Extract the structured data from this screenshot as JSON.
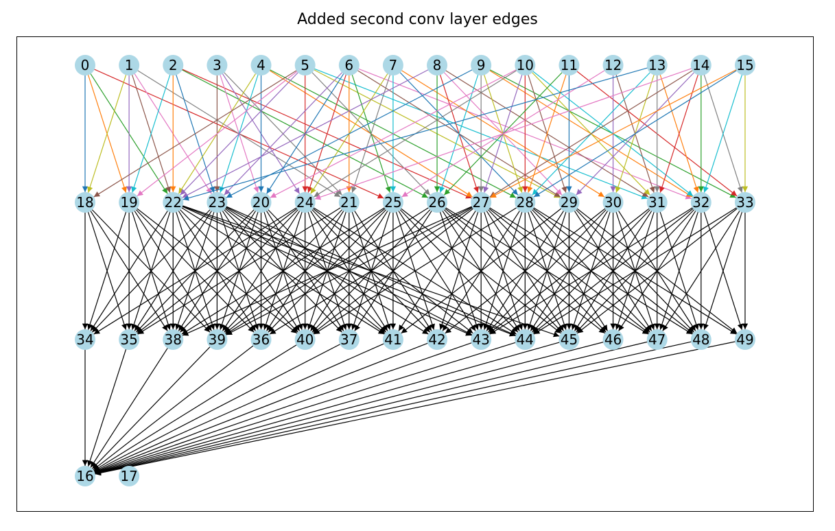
{
  "title": "Added second conv layer edges",
  "node_color": "#add8e6",
  "layers": [
    [
      "0",
      "1",
      "2",
      "3",
      "4",
      "5",
      "6",
      "7",
      "8",
      "9",
      "10",
      "11",
      "12",
      "13",
      "14",
      "15"
    ],
    [
      "18",
      "19",
      "22",
      "23",
      "20",
      "24",
      "21",
      "25",
      "26",
      "27",
      "28",
      "29",
      "30",
      "31",
      "32",
      "33"
    ],
    [
      "34",
      "35",
      "38",
      "39",
      "36",
      "40",
      "37",
      "41",
      "42",
      "43",
      "44",
      "45",
      "46",
      "47",
      "48",
      "49"
    ],
    [
      "16",
      "17"
    ]
  ],
  "edge_colors": [
    "#1f77b4",
    "#ff7f0e",
    "#2ca02c",
    "#d62728",
    "#9467bd",
    "#8c564b",
    "#e377c2",
    "#7f7f7f",
    "#bcbd22",
    "#17becf"
  ],
  "edges_input_to_conv1": [
    [
      "0",
      "18"
    ],
    [
      "0",
      "19"
    ],
    [
      "0",
      "22"
    ],
    [
      "0",
      "25"
    ],
    [
      "1",
      "19"
    ],
    [
      "1",
      "22"
    ],
    [
      "1",
      "23"
    ],
    [
      "1",
      "21"
    ],
    [
      "1",
      "18"
    ],
    [
      "2",
      "19"
    ],
    [
      "2",
      "23"
    ],
    [
      "2",
      "22"
    ],
    [
      "2",
      "26"
    ],
    [
      "2",
      "27"
    ],
    [
      "3",
      "24"
    ],
    [
      "3",
      "23"
    ],
    [
      "3",
      "20"
    ],
    [
      "3",
      "21"
    ],
    [
      "4",
      "22"
    ],
    [
      "4",
      "23"
    ],
    [
      "4",
      "20"
    ],
    [
      "4",
      "27"
    ],
    [
      "4",
      "28"
    ],
    [
      "5",
      "24"
    ],
    [
      "5",
      "22"
    ],
    [
      "5",
      "18"
    ],
    [
      "5",
      "19"
    ],
    [
      "5",
      "26"
    ],
    [
      "5",
      "29"
    ],
    [
      "5",
      "31"
    ],
    [
      "6",
      "20"
    ],
    [
      "6",
      "21"
    ],
    [
      "6",
      "25"
    ],
    [
      "6",
      "24"
    ],
    [
      "6",
      "23"
    ],
    [
      "6",
      "29"
    ],
    [
      "6",
      "32"
    ],
    [
      "7",
      "21"
    ],
    [
      "7",
      "24"
    ],
    [
      "7",
      "25"
    ],
    [
      "7",
      "28"
    ],
    [
      "7",
      "30"
    ],
    [
      "8",
      "26"
    ],
    [
      "8",
      "27"
    ],
    [
      "8",
      "22"
    ],
    [
      "8",
      "31"
    ],
    [
      "8",
      "29"
    ],
    [
      "9",
      "27"
    ],
    [
      "9",
      "28"
    ],
    [
      "9",
      "26"
    ],
    [
      "9",
      "23"
    ],
    [
      "9",
      "32"
    ],
    [
      "9",
      "33"
    ],
    [
      "10",
      "28"
    ],
    [
      "10",
      "27"
    ],
    [
      "10",
      "29"
    ],
    [
      "10",
      "20"
    ],
    [
      "10",
      "24"
    ],
    [
      "10",
      "31"
    ],
    [
      "10",
      "32"
    ],
    [
      "11",
      "29"
    ],
    [
      "11",
      "28"
    ],
    [
      "11",
      "26"
    ],
    [
      "11",
      "33"
    ],
    [
      "12",
      "30"
    ],
    [
      "12",
      "31"
    ],
    [
      "12",
      "25"
    ],
    [
      "13",
      "31"
    ],
    [
      "13",
      "30"
    ],
    [
      "13",
      "28"
    ],
    [
      "13",
      "22"
    ],
    [
      "13",
      "32"
    ],
    [
      "14",
      "32"
    ],
    [
      "14",
      "31"
    ],
    [
      "14",
      "29"
    ],
    [
      "14",
      "27"
    ],
    [
      "14",
      "24"
    ],
    [
      "14",
      "33"
    ],
    [
      "15",
      "33"
    ],
    [
      "15",
      "32"
    ],
    [
      "15",
      "28"
    ],
    [
      "15",
      "27"
    ]
  ],
  "edges_conv1_to_conv2": [
    [
      "18",
      "34"
    ],
    [
      "18",
      "35"
    ],
    [
      "18",
      "38"
    ],
    [
      "18",
      "39"
    ],
    [
      "19",
      "34"
    ],
    [
      "19",
      "35"
    ],
    [
      "19",
      "38"
    ],
    [
      "19",
      "39"
    ],
    [
      "19",
      "36"
    ],
    [
      "19",
      "40"
    ],
    [
      "22",
      "34"
    ],
    [
      "22",
      "35"
    ],
    [
      "22",
      "38"
    ],
    [
      "22",
      "39"
    ],
    [
      "22",
      "36"
    ],
    [
      "22",
      "40"
    ],
    [
      "22",
      "41"
    ],
    [
      "22",
      "43"
    ],
    [
      "22",
      "44"
    ],
    [
      "22",
      "45"
    ],
    [
      "23",
      "34"
    ],
    [
      "23",
      "35"
    ],
    [
      "23",
      "38"
    ],
    [
      "23",
      "39"
    ],
    [
      "23",
      "36"
    ],
    [
      "23",
      "40"
    ],
    [
      "23",
      "37"
    ],
    [
      "23",
      "41"
    ],
    [
      "23",
      "42"
    ],
    [
      "23",
      "43"
    ],
    [
      "23",
      "44"
    ],
    [
      "20",
      "35"
    ],
    [
      "20",
      "38"
    ],
    [
      "20",
      "39"
    ],
    [
      "20",
      "36"
    ],
    [
      "20",
      "40"
    ],
    [
      "20",
      "37"
    ],
    [
      "20",
      "41"
    ],
    [
      "24",
      "34"
    ],
    [
      "24",
      "35"
    ],
    [
      "24",
      "38"
    ],
    [
      "24",
      "39"
    ],
    [
      "24",
      "36"
    ],
    [
      "24",
      "40"
    ],
    [
      "24",
      "37"
    ],
    [
      "24",
      "41"
    ],
    [
      "24",
      "42"
    ],
    [
      "24",
      "43"
    ],
    [
      "24",
      "44"
    ],
    [
      "21",
      "35"
    ],
    [
      "21",
      "39"
    ],
    [
      "21",
      "36"
    ],
    [
      "21",
      "40"
    ],
    [
      "21",
      "37"
    ],
    [
      "21",
      "41"
    ],
    [
      "21",
      "42"
    ],
    [
      "25",
      "38"
    ],
    [
      "25",
      "39"
    ],
    [
      "25",
      "36"
    ],
    [
      "25",
      "40"
    ],
    [
      "25",
      "37"
    ],
    [
      "25",
      "41"
    ],
    [
      "25",
      "42"
    ],
    [
      "25",
      "43"
    ],
    [
      "25",
      "44"
    ],
    [
      "25",
      "45"
    ],
    [
      "26",
      "39"
    ],
    [
      "26",
      "40"
    ],
    [
      "26",
      "37"
    ],
    [
      "26",
      "43"
    ],
    [
      "26",
      "44"
    ],
    [
      "26",
      "45"
    ],
    [
      "26",
      "46"
    ],
    [
      "26",
      "47"
    ],
    [
      "27",
      "38"
    ],
    [
      "27",
      "39"
    ],
    [
      "27",
      "36"
    ],
    [
      "27",
      "40"
    ],
    [
      "27",
      "41"
    ],
    [
      "27",
      "42"
    ],
    [
      "27",
      "43"
    ],
    [
      "27",
      "44"
    ],
    [
      "27",
      "45"
    ],
    [
      "27",
      "46"
    ],
    [
      "27",
      "47"
    ],
    [
      "27",
      "48"
    ],
    [
      "28",
      "40"
    ],
    [
      "28",
      "42"
    ],
    [
      "28",
      "43"
    ],
    [
      "28",
      "44"
    ],
    [
      "28",
      "45"
    ],
    [
      "28",
      "46"
    ],
    [
      "28",
      "47"
    ],
    [
      "28",
      "48"
    ],
    [
      "28",
      "49"
    ],
    [
      "29",
      "41"
    ],
    [
      "29",
      "43"
    ],
    [
      "29",
      "44"
    ],
    [
      "29",
      "45"
    ],
    [
      "29",
      "47"
    ],
    [
      "29",
      "48"
    ],
    [
      "29",
      "49"
    ],
    [
      "30",
      "42"
    ],
    [
      "30",
      "43"
    ],
    [
      "30",
      "44"
    ],
    [
      "30",
      "45"
    ],
    [
      "30",
      "46"
    ],
    [
      "30",
      "47"
    ],
    [
      "30",
      "48"
    ],
    [
      "31",
      "43"
    ],
    [
      "31",
      "44"
    ],
    [
      "31",
      "45"
    ],
    [
      "31",
      "46"
    ],
    [
      "31",
      "47"
    ],
    [
      "31",
      "48"
    ],
    [
      "32",
      "43"
    ],
    [
      "32",
      "44"
    ],
    [
      "32",
      "45"
    ],
    [
      "32",
      "46"
    ],
    [
      "32",
      "47"
    ],
    [
      "32",
      "48"
    ],
    [
      "32",
      "49"
    ],
    [
      "33",
      "44"
    ],
    [
      "33",
      "45"
    ],
    [
      "33",
      "47"
    ],
    [
      "33",
      "48"
    ],
    [
      "33",
      "49"
    ]
  ],
  "edges_conv2_to_output": [
    [
      "34",
      "16"
    ],
    [
      "35",
      "16"
    ],
    [
      "38",
      "16"
    ],
    [
      "39",
      "16"
    ],
    [
      "36",
      "16"
    ],
    [
      "40",
      "16"
    ],
    [
      "37",
      "16"
    ],
    [
      "41",
      "16"
    ],
    [
      "42",
      "16"
    ],
    [
      "43",
      "16"
    ],
    [
      "44",
      "16"
    ],
    [
      "45",
      "16"
    ],
    [
      "46",
      "16"
    ],
    [
      "47",
      "16"
    ],
    [
      "48",
      "16"
    ],
    [
      "49",
      "16"
    ]
  ]
}
